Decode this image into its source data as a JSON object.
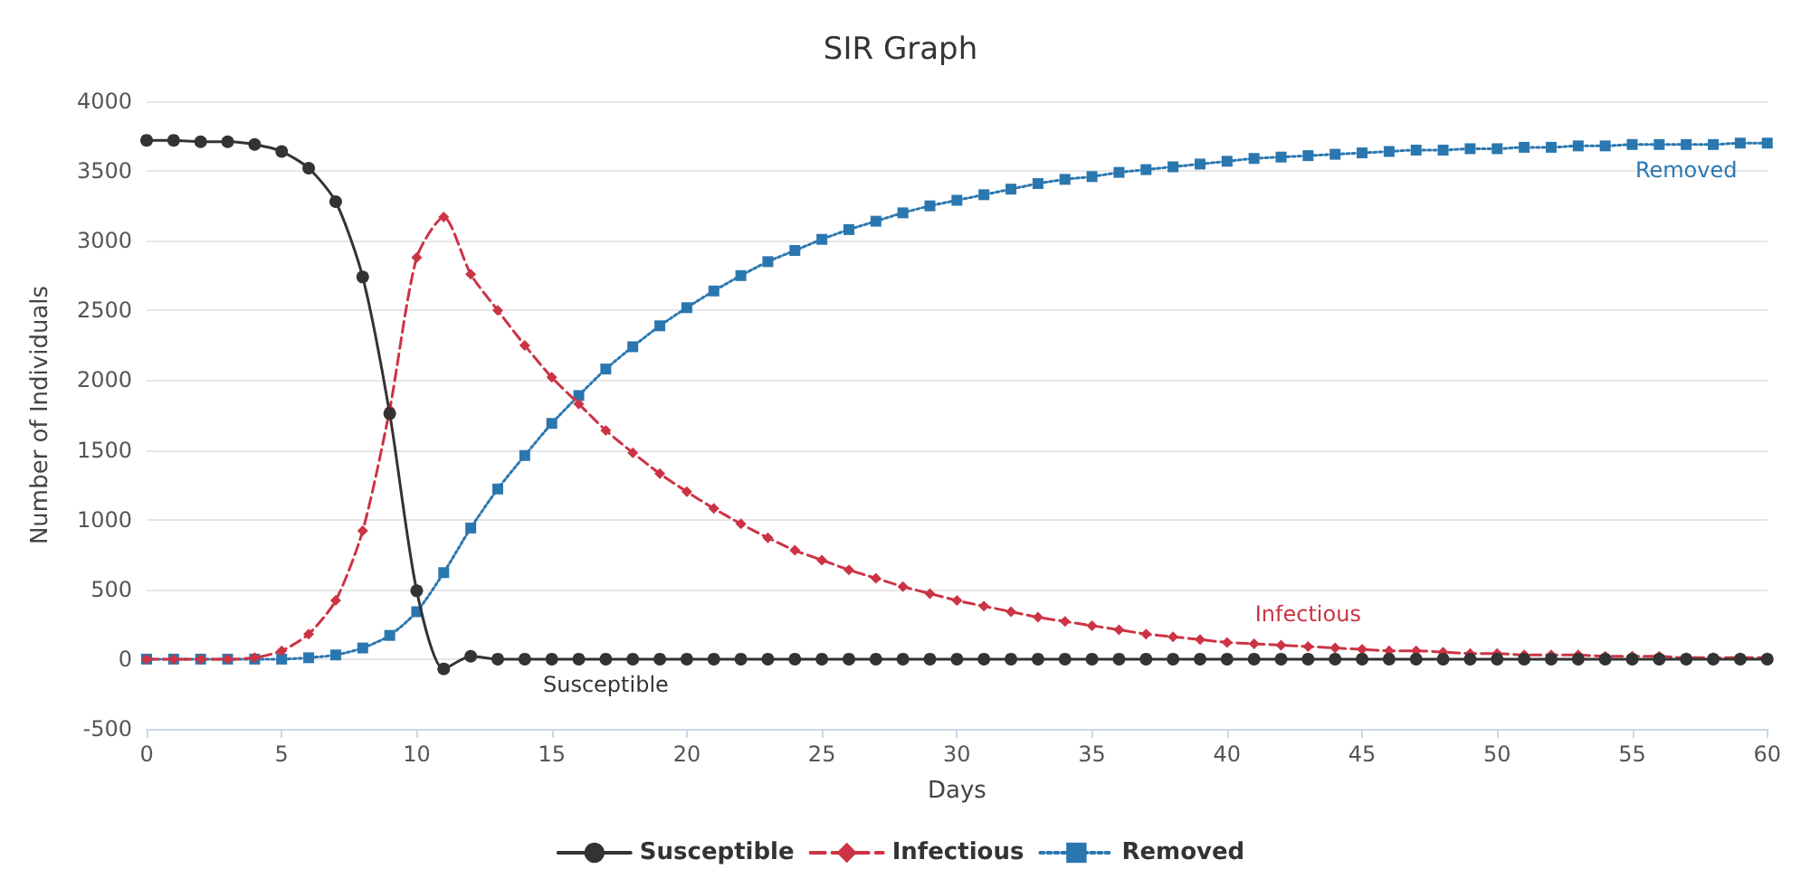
{
  "chart_data": {
    "type": "line",
    "title": "SIR Graph",
    "xlabel": "Days",
    "ylabel": "Number of Individuals",
    "x": [
      0,
      1,
      2,
      3,
      4,
      5,
      6,
      7,
      8,
      9,
      10,
      11,
      12,
      13,
      14,
      15,
      16,
      17,
      18,
      19,
      20,
      21,
      22,
      23,
      24,
      25,
      26,
      27,
      28,
      29,
      30,
      31,
      32,
      33,
      34,
      35,
      36,
      37,
      38,
      39,
      40,
      41,
      42,
      43,
      44,
      45,
      46,
      47,
      48,
      49,
      50,
      51,
      52,
      53,
      54,
      55,
      56,
      57,
      58,
      59,
      60
    ],
    "xlim": [
      0,
      60
    ],
    "xticks": [
      0,
      5,
      10,
      15,
      20,
      25,
      30,
      35,
      40,
      45,
      50,
      55,
      60
    ],
    "ylim": [
      -500,
      4000
    ],
    "yticks": [
      -500,
      0,
      500,
      1000,
      1500,
      2000,
      2500,
      3000,
      3500,
      4000
    ],
    "grid": "y",
    "legend": "bottom",
    "series": [
      {
        "name": "Susceptible",
        "color": "#333333",
        "marker": "circle",
        "line_style": "solid",
        "values": [
          3720,
          3720,
          3710,
          3710,
          3690,
          3640,
          3520,
          3280,
          2740,
          1760,
          490,
          -70,
          20,
          0,
          0,
          0,
          0,
          0,
          0,
          0,
          0,
          0,
          0,
          0,
          0,
          0,
          0,
          0,
          0,
          0,
          0,
          0,
          0,
          0,
          0,
          0,
          0,
          0,
          0,
          0,
          0,
          0,
          0,
          0,
          0,
          0,
          0,
          0,
          0,
          0,
          0,
          0,
          0,
          0,
          0,
          0,
          0,
          0,
          0,
          0,
          0
        ]
      },
      {
        "name": "Infectious",
        "color": "#cc3344",
        "marker": "diamond",
        "line_style": "dashed",
        "values": [
          0,
          0,
          0,
          0,
          10,
          60,
          180,
          420,
          920,
          1790,
          2880,
          3170,
          2760,
          2500,
          2250,
          2020,
          1830,
          1640,
          1480,
          1330,
          1200,
          1080,
          970,
          870,
          780,
          710,
          640,
          580,
          520,
          470,
          420,
          380,
          340,
          300,
          270,
          240,
          210,
          180,
          160,
          140,
          120,
          110,
          100,
          90,
          80,
          70,
          60,
          60,
          50,
          40,
          40,
          30,
          30,
          30,
          20,
          20,
          20,
          10,
          10,
          10,
          10
        ]
      },
      {
        "name": "Removed",
        "color": "#2a77b0",
        "marker": "square",
        "line_style": "dotted",
        "values": [
          0,
          0,
          0,
          0,
          0,
          0,
          10,
          30,
          80,
          170,
          340,
          620,
          940,
          1220,
          1460,
          1690,
          1890,
          2080,
          2240,
          2390,
          2520,
          2640,
          2750,
          2850,
          2930,
          3010,
          3080,
          3140,
          3200,
          3250,
          3290,
          3330,
          3370,
          3410,
          3440,
          3460,
          3490,
          3510,
          3530,
          3550,
          3570,
          3590,
          3600,
          3610,
          3620,
          3630,
          3640,
          3650,
          3650,
          3660,
          3660,
          3670,
          3670,
          3680,
          3680,
          3690,
          3690,
          3690,
          3690,
          3700,
          3700
        ]
      }
    ]
  }
}
